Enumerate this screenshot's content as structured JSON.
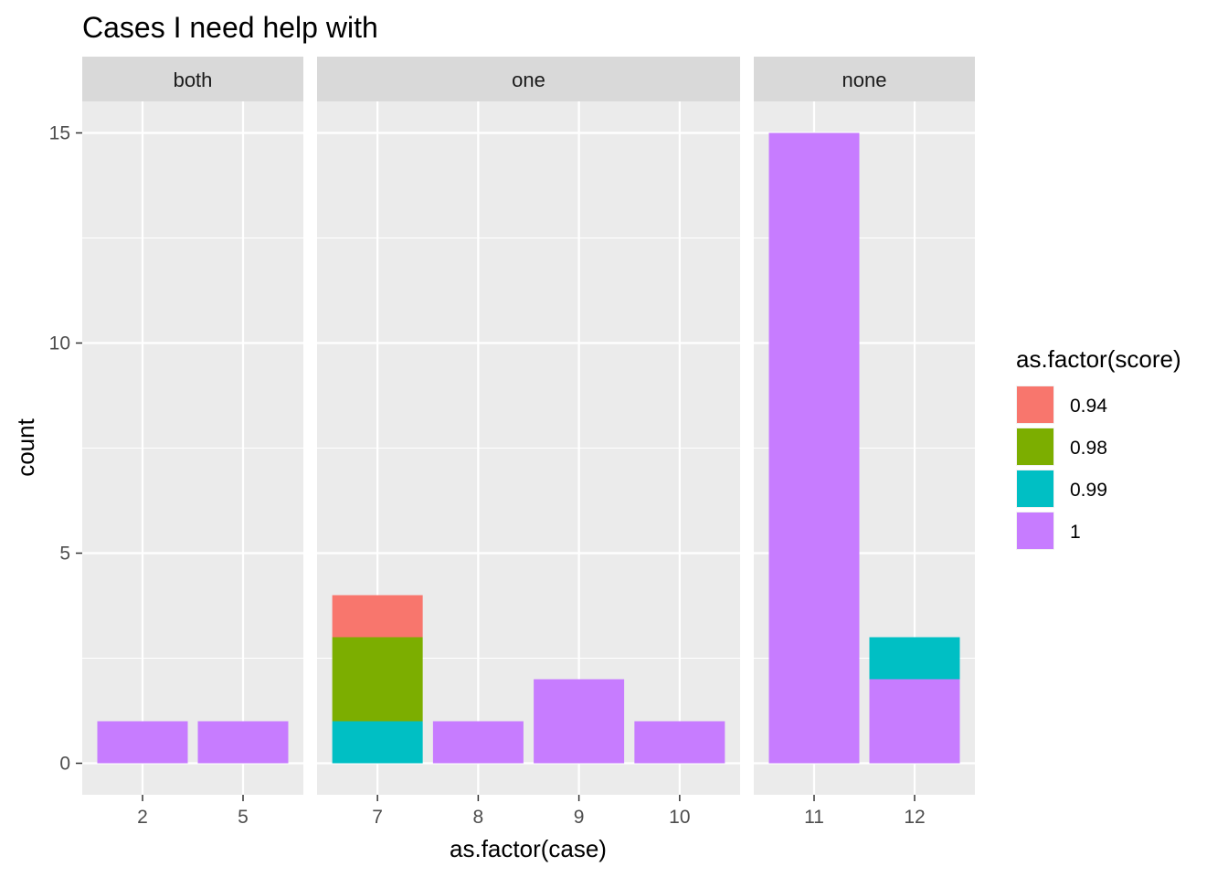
{
  "chart_data": {
    "type": "bar",
    "stacked": true,
    "faceted": true,
    "title": "Cases I need help with",
    "xlabel": "as.factor(case)",
    "ylabel": "count",
    "ylim": [
      -0.75,
      15.75
    ],
    "yticks": [
      0,
      5,
      10,
      15
    ],
    "legend": {
      "title": "as.factor(score)",
      "placement": "right",
      "entries": [
        {
          "label": "0.94",
          "color": "#F8766D"
        },
        {
          "label": "0.98",
          "color": "#7CAE00"
        },
        {
          "label": "0.99",
          "color": "#00BFC4"
        },
        {
          "label": "1",
          "color": "#C77CFF"
        }
      ]
    },
    "facets": [
      {
        "label": "both",
        "categories": [
          "2",
          "5"
        ],
        "bars": [
          {
            "case": "2",
            "segments": [
              {
                "score": "1",
                "count": 1
              }
            ]
          },
          {
            "case": "5",
            "segments": [
              {
                "score": "1",
                "count": 1
              }
            ]
          }
        ]
      },
      {
        "label": "one",
        "categories": [
          "7",
          "8",
          "9",
          "10"
        ],
        "bars": [
          {
            "case": "7",
            "segments": [
              {
                "score": "0.99",
                "count": 1
              },
              {
                "score": "0.98",
                "count": 2
              },
              {
                "score": "0.94",
                "count": 1
              }
            ]
          },
          {
            "case": "8",
            "segments": [
              {
                "score": "1",
                "count": 1
              }
            ]
          },
          {
            "case": "9",
            "segments": [
              {
                "score": "1",
                "count": 2
              }
            ]
          },
          {
            "case": "10",
            "segments": [
              {
                "score": "1",
                "count": 1
              }
            ]
          }
        ]
      },
      {
        "label": "none",
        "categories": [
          "11",
          "12"
        ],
        "bars": [
          {
            "case": "11",
            "segments": [
              {
                "score": "1",
                "count": 15
              }
            ]
          },
          {
            "case": "12",
            "segments": [
              {
                "score": "1",
                "count": 2
              },
              {
                "score": "0.99",
                "count": 1
              }
            ]
          }
        ]
      }
    ],
    "panel_background": "#EBEBEB",
    "strip_background": "#D9D9D9",
    "grid": true
  }
}
